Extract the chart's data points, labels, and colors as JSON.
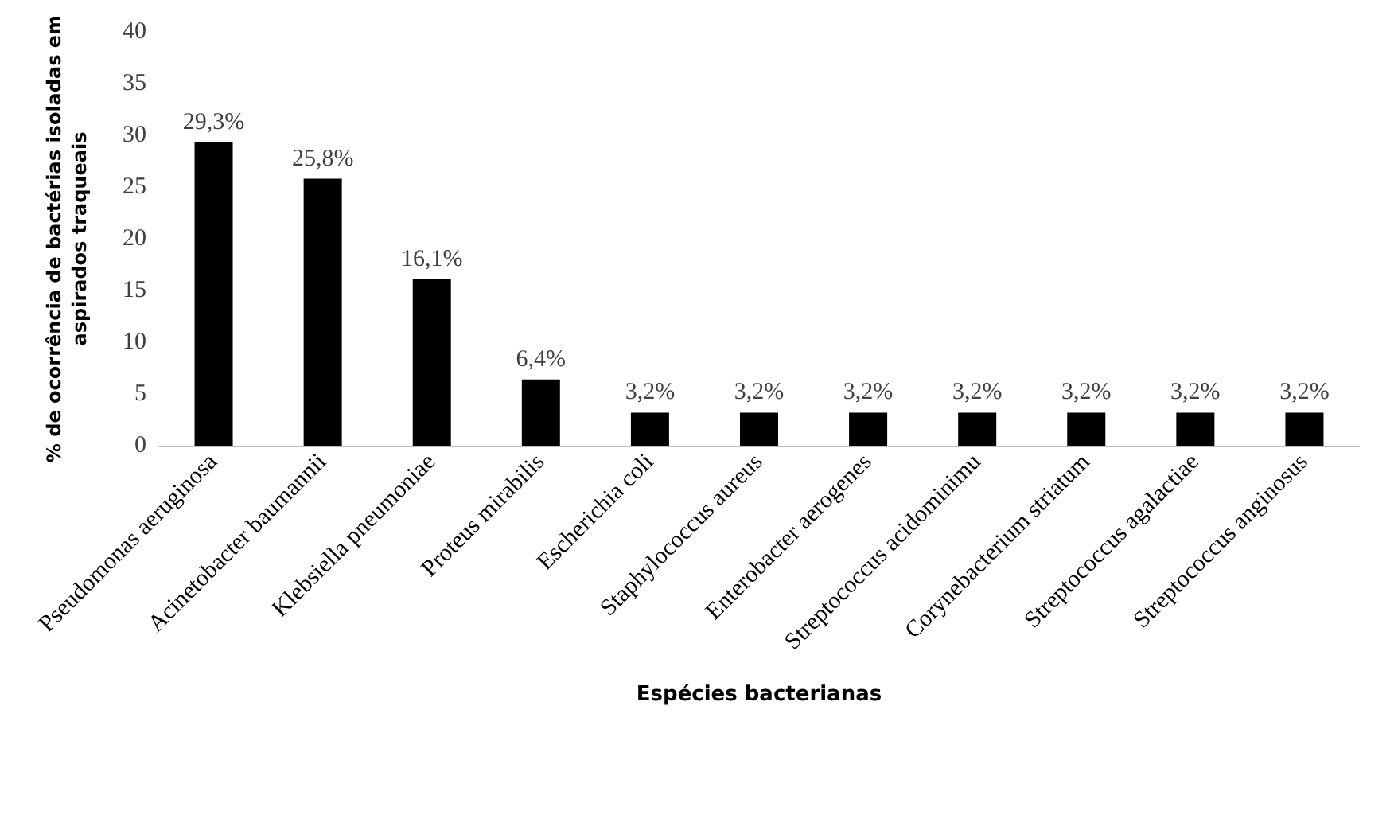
{
  "chart_data": {
    "type": "bar",
    "xlabel": "Espécies bacterianas",
    "ylabel": "% de ocorrência de bactérias isoladas em aspirados traqueais",
    "categories": [
      "Pseudomonas aeruginosa",
      "Acinetobacter baumannii",
      "Klebsiella pneumoniae",
      "Proteus mirabilis",
      "Escherichia coli",
      "Staphylococcus aureus",
      "Enterobacter aerogenes",
      "Streptococcus acidominimu",
      "Corynebacterium striatum",
      "Streptococcus agalactiae",
      "Streptococcus anginosus"
    ],
    "values": [
      29.3,
      25.8,
      16.1,
      6.4,
      3.2,
      3.2,
      3.2,
      3.2,
      3.2,
      3.2,
      3.2
    ],
    "value_labels": [
      "29,3%",
      "25,8%",
      "16,1%",
      "6,4%",
      "3,2%",
      "3,2%",
      "3,2%",
      "3,2%",
      "3,2%",
      "3,2%",
      "3,2%"
    ],
    "color": "#000000",
    "ylim": [
      0,
      40
    ],
    "yticks": [
      0,
      5,
      10,
      15,
      20,
      25,
      30,
      35,
      40
    ],
    "grid": false
  }
}
